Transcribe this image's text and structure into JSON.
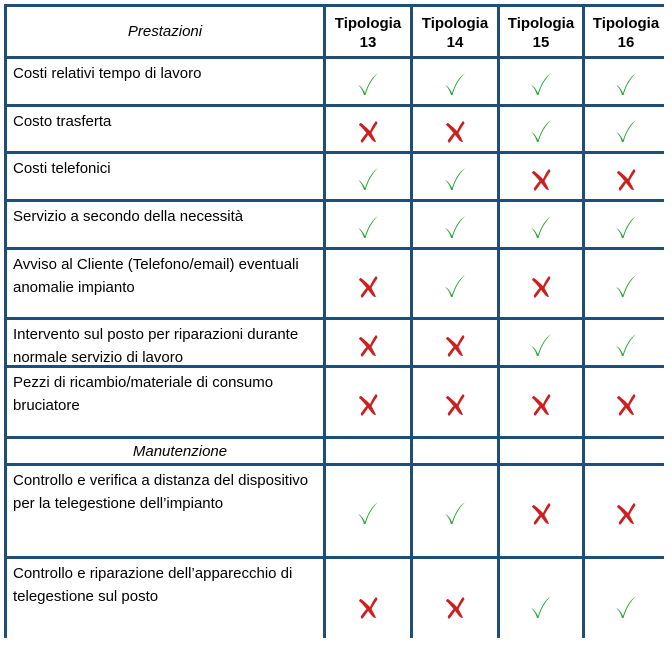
{
  "header": {
    "title": "Prestazioni",
    "columns": [
      {
        "line1": "Tipologia",
        "line2": "13"
      },
      {
        "line1": "Tipologia",
        "line2": "14"
      },
      {
        "line1": "Tipologia",
        "line2": "15"
      },
      {
        "line1": "Tipologia",
        "line2": "16"
      }
    ]
  },
  "colors": {
    "check": "#2ea63a",
    "cross": "#cc1f1f",
    "border": "#1f4e79"
  },
  "rows": [
    {
      "label": "Costi relativi tempo di lavoro",
      "marks": [
        "check",
        "check",
        "check",
        "check"
      ]
    },
    {
      "label": "Costo trasferta",
      "marks": [
        "cross",
        "cross",
        "check",
        "check"
      ]
    },
    {
      "label": "Costi telefonici",
      "marks": [
        "check",
        "check",
        "cross",
        "cross"
      ]
    },
    {
      "label": "Servizio a secondo della necessità",
      "marks": [
        "check",
        "check",
        "check",
        "check"
      ]
    },
    {
      "label": "Avviso al Cliente (Telefono/email) eventuali anomalie impianto",
      "marks": [
        "cross",
        "check",
        "cross",
        "check"
      ]
    },
    {
      "label": "Intervento sul posto per riparazioni durante normale servizio di lavoro",
      "marks": [
        "cross",
        "cross",
        "check",
        "check"
      ]
    },
    {
      "label": "Pezzi di ricambio/materiale di consumo bruciatore",
      "marks": [
        "cross",
        "cross",
        "cross",
        "cross"
      ]
    }
  ],
  "section": {
    "title": "Manutenzione"
  },
  "rows2": [
    {
      "label": "Controllo e verifica a distanza del dispositivo per la telegestione dell’impianto",
      "marks": [
        "check",
        "check",
        "cross",
        "cross"
      ]
    },
    {
      "label": "Controllo e riparazione dell’apparecchio di telegestione sul posto",
      "marks": [
        "cross",
        "cross",
        "check",
        "check"
      ]
    }
  ]
}
